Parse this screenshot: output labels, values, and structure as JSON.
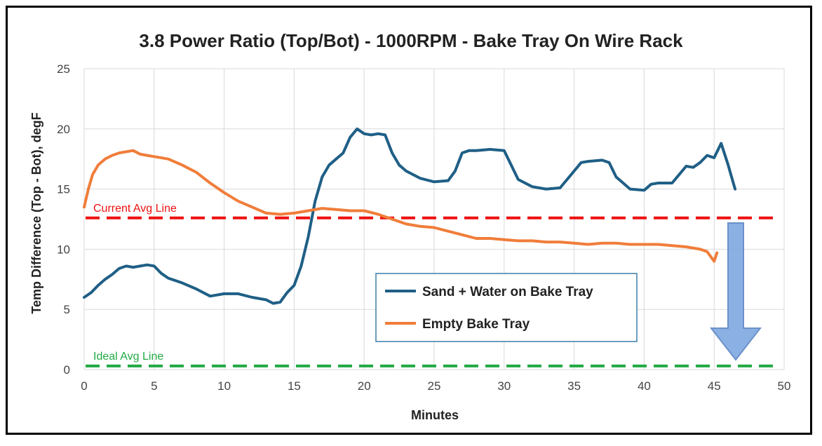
{
  "chart_data": {
    "type": "line",
    "title": "3.8 Power Ratio (Top/Bot) - 1000RPM - Bake Tray On Wire Rack",
    "xlabel": "Minutes",
    "ylabel": "Temp Difference (Top - Bot), degF",
    "xlim": [
      0,
      50
    ],
    "ylim": [
      0,
      25
    ],
    "xticks": [
      0,
      5,
      10,
      15,
      20,
      25,
      30,
      35,
      40,
      45,
      50
    ],
    "yticks": [
      0,
      5,
      10,
      15,
      20,
      25
    ],
    "grid": true,
    "legend_position": "bottom-right",
    "series": [
      {
        "name": "Sand + Water on Bake Tray",
        "color": "#1f5f86",
        "x": [
          0,
          0.5,
          1,
          1.5,
          2,
          2.5,
          3,
          3.5,
          4,
          4.5,
          5,
          5.5,
          6,
          7,
          8,
          9,
          10,
          11,
          12,
          13,
          13.5,
          14,
          14.5,
          15,
          15.5,
          16,
          16.5,
          17,
          17.5,
          18,
          18.5,
          19,
          19.5,
          20,
          20.5,
          21,
          21.5,
          22,
          22.5,
          23,
          24,
          25,
          26,
          26.5,
          27,
          27.5,
          28,
          29,
          30,
          30.5,
          31,
          32,
          33,
          34,
          35,
          35.5,
          36,
          37,
          37.5,
          38,
          38.5,
          39,
          40,
          40.5,
          41,
          42,
          42.5,
          43,
          43.5,
          44,
          44.5,
          45,
          45.5,
          46,
          46.3,
          46.5
        ],
        "y": [
          6.0,
          6.4,
          7.0,
          7.5,
          7.9,
          8.4,
          8.6,
          8.5,
          8.6,
          8.7,
          8.6,
          8.0,
          7.6,
          7.2,
          6.7,
          6.1,
          6.3,
          6.3,
          6.0,
          5.8,
          5.5,
          5.6,
          6.4,
          7.0,
          8.6,
          11.0,
          14.0,
          16.0,
          17.0,
          17.5,
          18.0,
          19.3,
          20.0,
          19.6,
          19.5,
          19.6,
          19.5,
          18.0,
          17.0,
          16.5,
          15.9,
          15.6,
          15.7,
          16.5,
          18.0,
          18.2,
          18.2,
          18.3,
          18.2,
          17.0,
          15.8,
          15.2,
          15.0,
          15.1,
          16.5,
          17.2,
          17.3,
          17.4,
          17.2,
          16.0,
          15.5,
          15.0,
          14.9,
          15.4,
          15.5,
          15.5,
          16.2,
          16.9,
          16.8,
          17.2,
          17.8,
          17.6,
          18.8,
          17.0,
          15.8,
          15.0
        ]
      },
      {
        "name": "Empty Bake Tray",
        "color": "#f07d3a",
        "x": [
          0,
          0.3,
          0.6,
          1,
          1.5,
          2,
          2.5,
          3,
          3.5,
          4,
          4.5,
          5,
          6,
          7,
          8,
          9,
          10,
          11,
          12,
          13,
          14,
          15,
          16,
          17,
          18,
          19,
          20,
          21,
          22,
          23,
          24,
          25,
          26,
          27,
          28,
          29,
          30,
          31,
          32,
          33,
          34,
          35,
          36,
          37,
          38,
          39,
          40,
          41,
          42,
          43,
          44,
          44.5,
          45,
          45.2
        ],
        "y": [
          13.5,
          15.0,
          16.2,
          17.0,
          17.5,
          17.8,
          18.0,
          18.1,
          18.2,
          17.9,
          17.8,
          17.7,
          17.5,
          17.0,
          16.4,
          15.5,
          14.7,
          14.0,
          13.5,
          13.0,
          12.9,
          13.0,
          13.2,
          13.4,
          13.3,
          13.2,
          13.2,
          12.9,
          12.5,
          12.1,
          11.9,
          11.8,
          11.5,
          11.2,
          10.9,
          10.9,
          10.8,
          10.7,
          10.7,
          10.6,
          10.6,
          10.5,
          10.4,
          10.5,
          10.5,
          10.4,
          10.4,
          10.4,
          10.3,
          10.2,
          10.0,
          9.8,
          9.0,
          9.7
        ]
      }
    ],
    "reference_lines": [
      {
        "label": "Current Avg Line",
        "y": 12.6,
        "color": "#ee1111"
      },
      {
        "label": "Ideal Avg Line",
        "y": 0.3,
        "color": "#22aa44"
      }
    ],
    "annotation": {
      "type": "down-arrow",
      "color": "#7fa8e0"
    }
  }
}
